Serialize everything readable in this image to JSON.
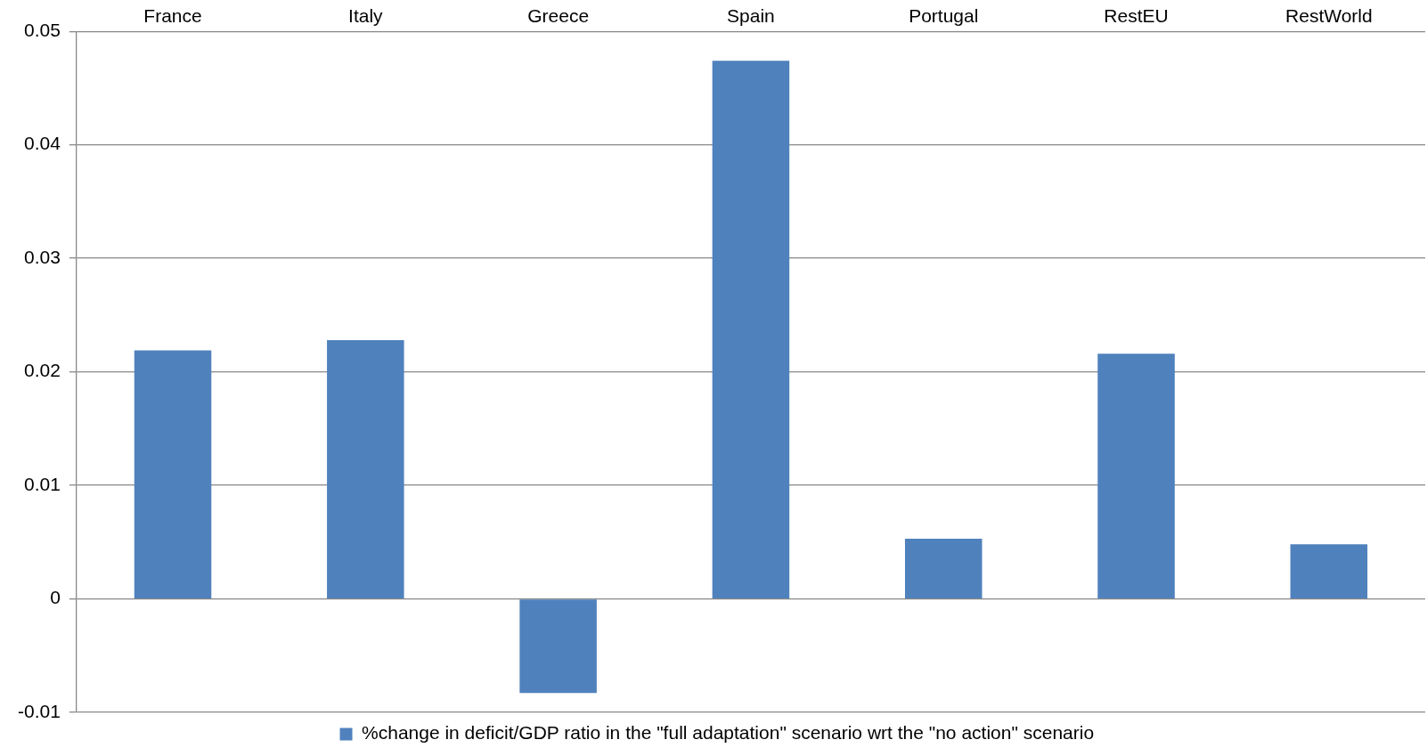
{
  "chart_data": {
    "type": "bar",
    "categories": [
      "France",
      "Italy",
      "Greece",
      "Spain",
      "Portugal",
      "RestEU",
      "RestWorld"
    ],
    "series": [
      {
        "name": "%change in deficit/GDP ratio in the \"full adaptation\" scenario wrt the \"no action\" scenario",
        "color": "#4f81bd",
        "values": [
          0.0219,
          0.0228,
          -0.0083,
          0.0474,
          0.0053,
          0.0216,
          0.0048
        ]
      }
    ],
    "ylim": [
      -0.01,
      0.05
    ],
    "yticks": [
      -0.01,
      0,
      0.01,
      0.02,
      0.03,
      0.04,
      0.05
    ],
    "grid": "y",
    "legend": "bottom"
  }
}
